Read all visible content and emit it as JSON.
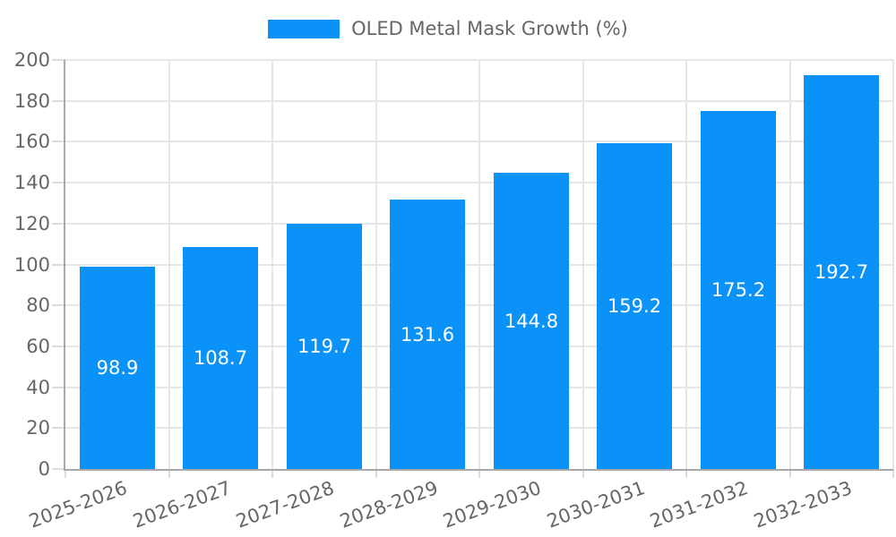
{
  "legend": {
    "label": "OLED Metal Mask Growth (%)",
    "swatch_color": "#0b92f8"
  },
  "chart_data": {
    "type": "bar",
    "title": "",
    "categories": [
      "2025-2026",
      "2026-2027",
      "2027-2028",
      "2028-2029",
      "2029-2030",
      "2030-2031",
      "2031-2032",
      "2032-2033"
    ],
    "values": [
      98.9,
      108.7,
      119.7,
      131.6,
      144.8,
      159.2,
      175.2,
      192.7
    ],
    "series_name": "OLED Metal Mask Growth (%)",
    "xlabel": "",
    "ylabel": "",
    "ylim": [
      0,
      200
    ],
    "ytick_step": 20,
    "grid": true,
    "legend_position": "top-center",
    "x_label_rotation_deg": -20,
    "bar_color": "#0b92f8",
    "value_label_color": "#ffffff",
    "axis_text_color": "#666666",
    "grid_color": "#e6e6e6",
    "axis_line_color": "#a8a8a8"
  }
}
